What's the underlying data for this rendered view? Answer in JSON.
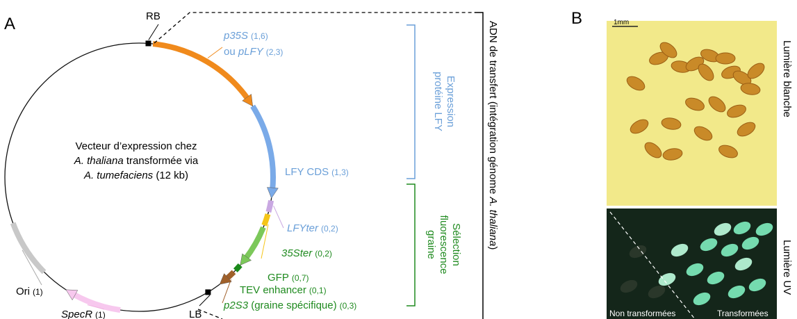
{
  "panel_a": {
    "letter": "A",
    "rb": "RB",
    "lb": "LB",
    "center": {
      "line1": "Vecteur d’expression chez",
      "line2_italic": "A. thaliana",
      "line2": " transformée via",
      "line3_italic": "A. tumefaciens",
      "line3": " (12 kb)"
    },
    "elements": {
      "p35s": {
        "name": "p35S",
        "size": "(1,6)"
      },
      "plfy": {
        "prefix": "ou ",
        "name": "pLFY",
        "size": "(2,3)"
      },
      "lfycds": {
        "name": "LFY CDS",
        "size": "(1,3)"
      },
      "lfyter": {
        "name": "LFYter",
        "size": "(0,2)"
      },
      "ster": {
        "name": "35Ster",
        "size": "(0,2)"
      },
      "gfp": {
        "name": "GFP",
        "size": "(0,7)"
      },
      "tev": {
        "name": "TEV enhancer",
        "size": "(0,1)"
      },
      "p2s3": {
        "name": "p2S3",
        "desc": " (graine spécifique)",
        "size": "(0,3)"
      },
      "ori": {
        "name": "Ori",
        "size": "(1)"
      },
      "specr": {
        "name": "SpecR",
        "size": "(1)"
      }
    },
    "bracket_expression": [
      "Expression",
      "protéine LFY"
    ],
    "bracket_selection": [
      "Sélection",
      "fluorescence",
      "graine"
    ],
    "transfer": {
      "text": "ADN de transfert (intégration génome ",
      "italic": "A. thaliana",
      "end": ")"
    }
  },
  "panel_b": {
    "letter": "B",
    "scale": "1mm",
    "white_light": "Lumière blanche",
    "uv_light": "Lumière UV",
    "non_transformed": "Non transformées",
    "transformed": "Transformées"
  }
}
